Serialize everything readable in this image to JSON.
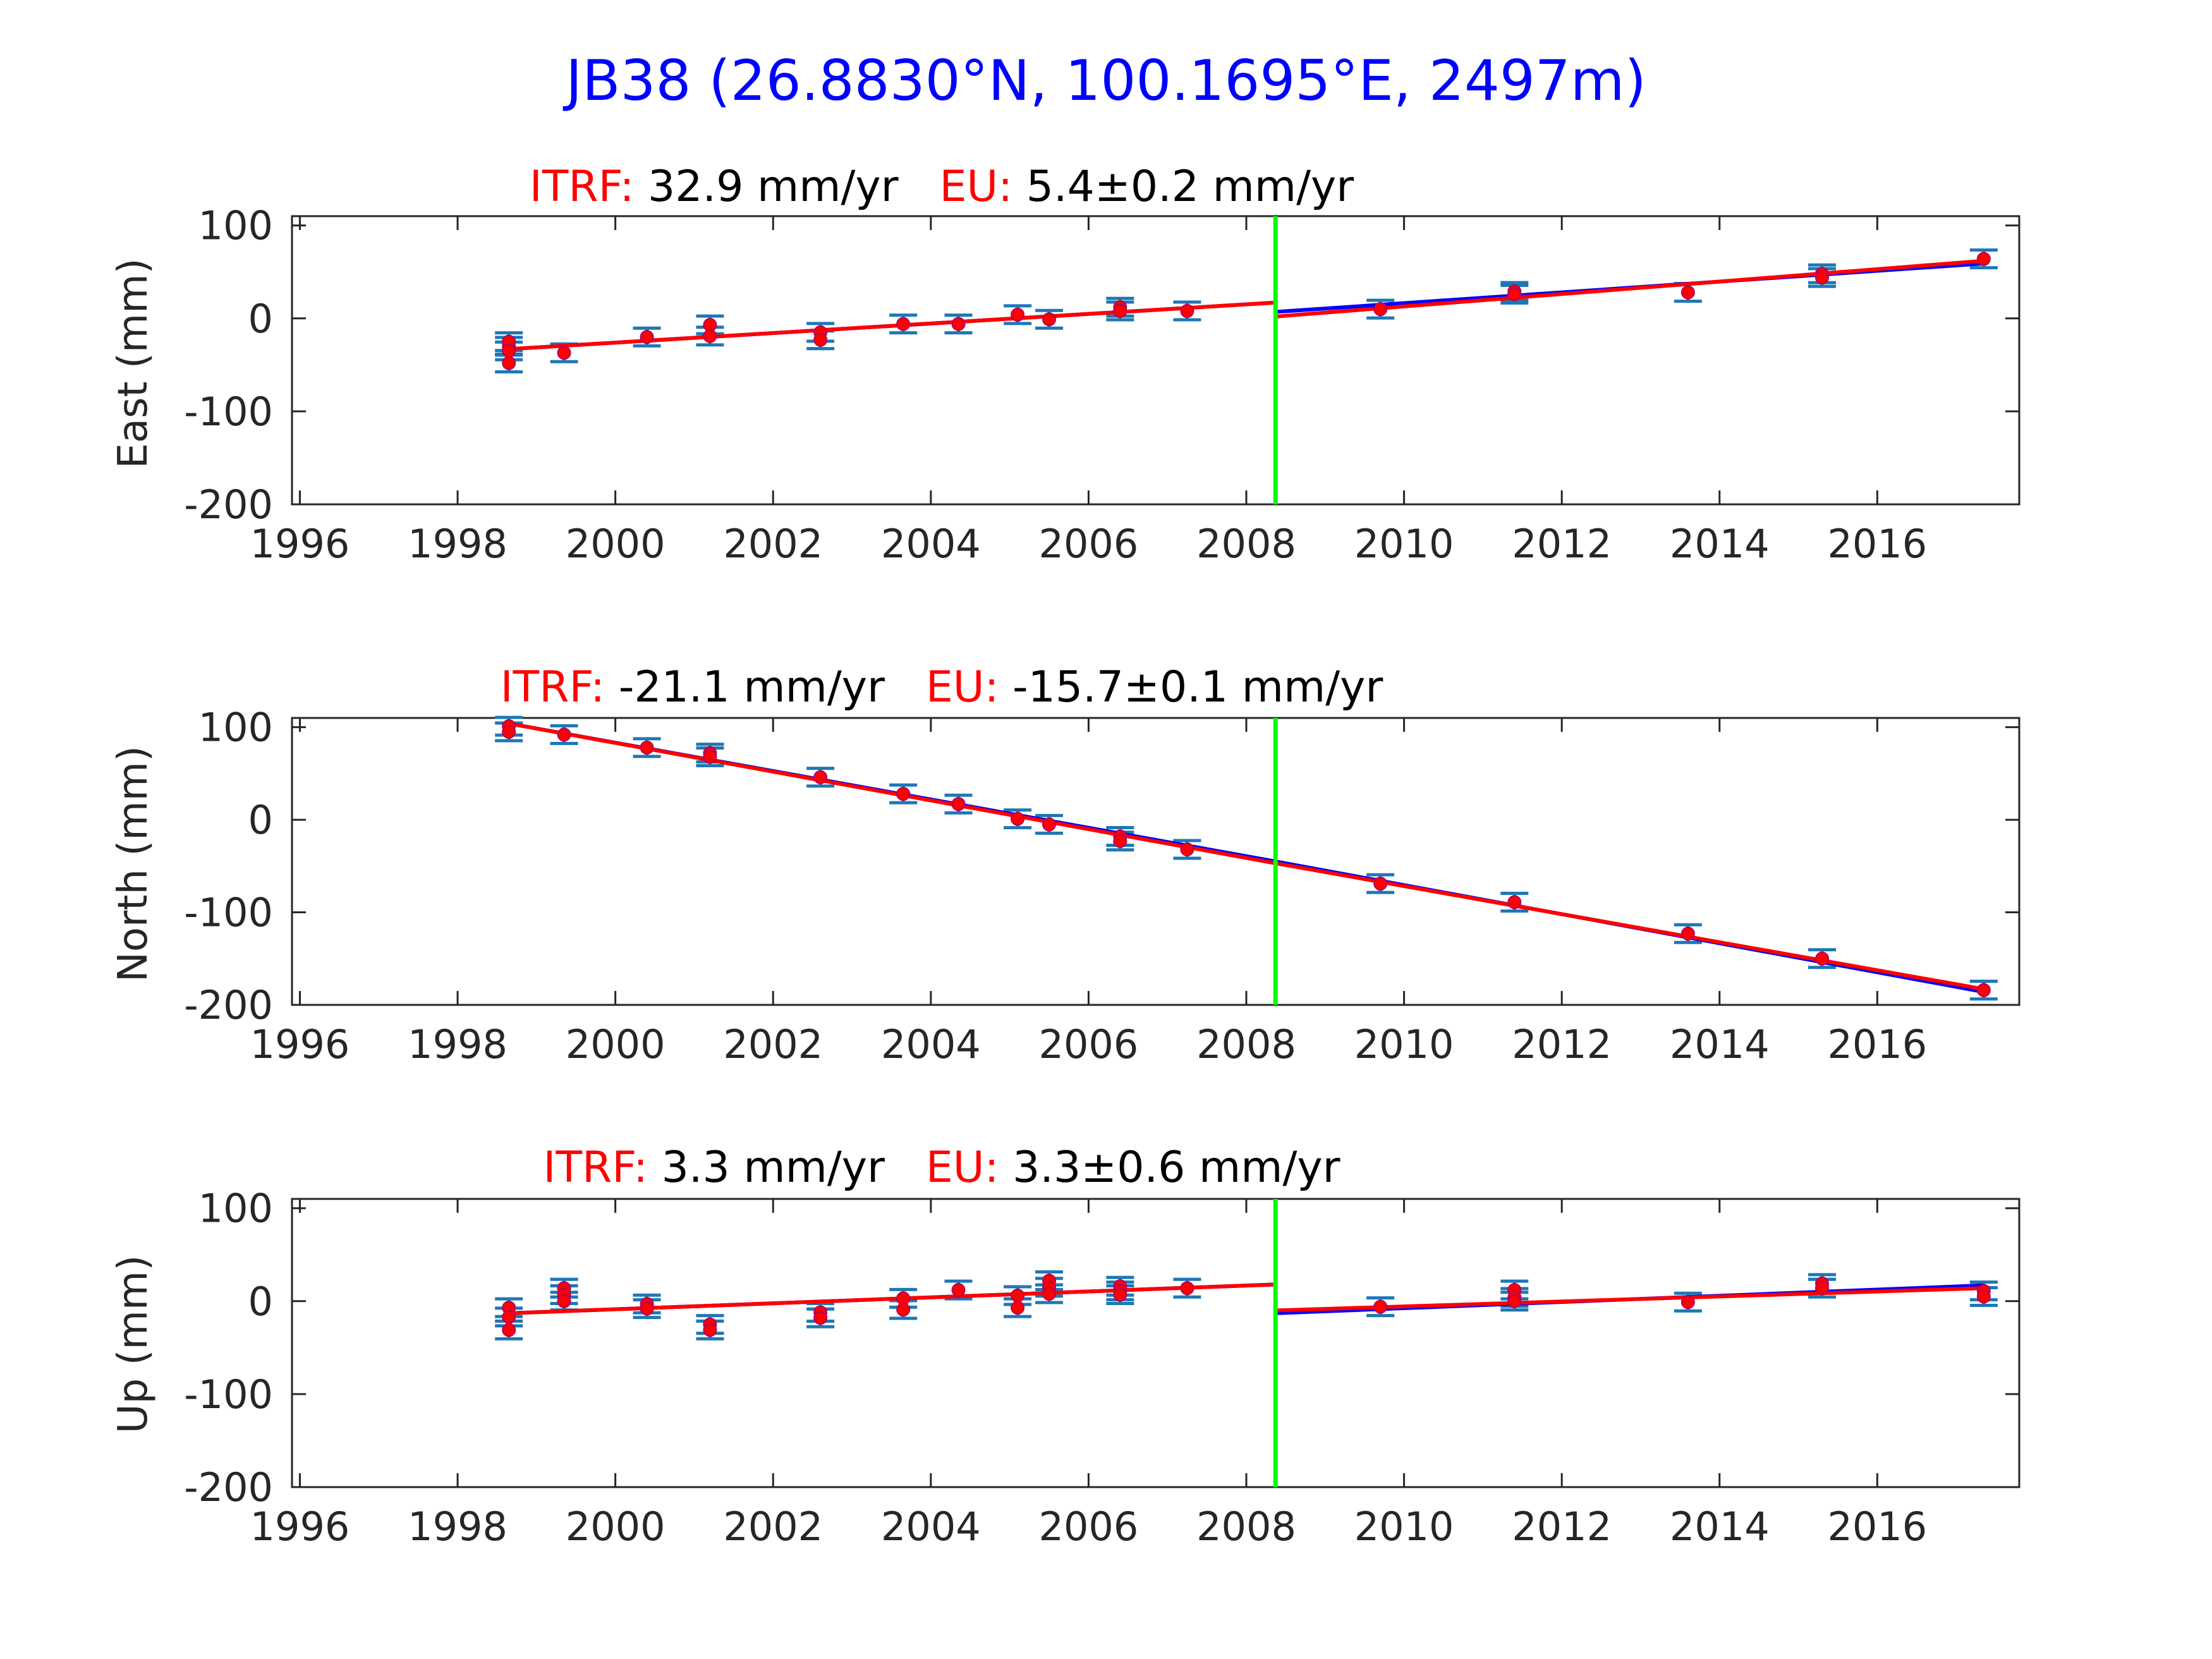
{
  "figure_title": "JB38 (26.8830°N, 100.1695°E, 2497m)",
  "colors": {
    "title": "#0000ff",
    "fit_itrf": "#0000ff",
    "fit_eu": "#ff0000",
    "points": "#ff0000",
    "errorbars": "#1f77b4",
    "offset_line": "#00ff00",
    "label_accent": "#ff0000",
    "axis_text": "#262626"
  },
  "chart_data": [
    {
      "type": "scatter",
      "ylabel": "East (mm)",
      "itrf_label": "ITRF:",
      "itrf_value": " 32.9 mm/yr",
      "eu_label": "EU:",
      "eu_value": " 5.4±0.2 mm/yr",
      "xlim": [
        1995.9,
        2017.8
      ],
      "ylim": [
        -200,
        110
      ],
      "xticks": [
        1996,
        1998,
        2000,
        2002,
        2004,
        2006,
        2008,
        2010,
        2012,
        2014,
        2016
      ],
      "xtick_labels": [
        "1996",
        "1998",
        "2000",
        "2002",
        "2004",
        "2006",
        "2008",
        "2010",
        "2012",
        "2014",
        "2016"
      ],
      "yticks": [
        -200,
        -100,
        0,
        100
      ],
      "ytick_labels": [
        "-200",
        "-100",
        "0",
        "100"
      ],
      "grid": false,
      "offset_epoch": 2008.37,
      "points": [
        {
          "x": 1998.65,
          "y": -48
        },
        {
          "x": 1998.65,
          "y": -30
        },
        {
          "x": 1998.65,
          "y": -25
        },
        {
          "x": 1998.65,
          "y": -35
        },
        {
          "x": 1999.35,
          "y": -37
        },
        {
          "x": 2000.4,
          "y": -20
        },
        {
          "x": 2001.2,
          "y": -7
        },
        {
          "x": 2001.2,
          "y": -19
        },
        {
          "x": 2002.6,
          "y": -15
        },
        {
          "x": 2002.6,
          "y": -23
        },
        {
          "x": 2003.65,
          "y": -6
        },
        {
          "x": 2004.35,
          "y": -6
        },
        {
          "x": 2005.1,
          "y": 4
        },
        {
          "x": 2005.5,
          "y": -1
        },
        {
          "x": 2006.4,
          "y": 12
        },
        {
          "x": 2006.4,
          "y": 8
        },
        {
          "x": 2007.25,
          "y": 8
        },
        {
          "x": 2009.7,
          "y": 10
        },
        {
          "x": 2011.4,
          "y": 29
        },
        {
          "x": 2011.4,
          "y": 26
        },
        {
          "x": 2013.6,
          "y": 28
        },
        {
          "x": 2015.3,
          "y": 48
        },
        {
          "x": 2015.3,
          "y": 44
        },
        {
          "x": 2017.35,
          "y": 64
        }
      ],
      "fit_itrf": [
        {
          "x": [
            1998.65,
            2008.37
          ],
          "y": [
            -33,
            17
          ]
        },
        {
          "x": [
            2008.37,
            2017.35
          ],
          "y": [
            7,
            59
          ]
        }
      ],
      "fit_eu": [
        {
          "x": [
            1998.65,
            2008.37
          ],
          "y": [
            -33,
            17
          ]
        },
        {
          "x": [
            2008.37,
            2017.35
          ],
          "y": [
            2,
            62
          ]
        }
      ]
    },
    {
      "type": "scatter",
      "ylabel": "North (mm)",
      "itrf_label": "ITRF:",
      "itrf_value": " -21.1 mm/yr",
      "eu_label": "EU:",
      "eu_value": " -15.7±0.1 mm/yr",
      "xlim": [
        1995.9,
        2017.8
      ],
      "ylim": [
        -200,
        110
      ],
      "xticks": [
        1996,
        1998,
        2000,
        2002,
        2004,
        2006,
        2008,
        2010,
        2012,
        2014,
        2016
      ],
      "xtick_labels": [
        "1996",
        "1998",
        "2000",
        "2002",
        "2004",
        "2006",
        "2008",
        "2010",
        "2012",
        "2014",
        "2016"
      ],
      "yticks": [
        -200,
        -100,
        0,
        100
      ],
      "ytick_labels": [
        "-200",
        "-100",
        "0",
        "100"
      ],
      "grid": false,
      "offset_epoch": 2008.37,
      "points": [
        {
          "x": 1998.65,
          "y": 101
        },
        {
          "x": 1998.65,
          "y": 95
        },
        {
          "x": 1999.35,
          "y": 92
        },
        {
          "x": 2000.4,
          "y": 78
        },
        {
          "x": 2001.2,
          "y": 72
        },
        {
          "x": 2001.2,
          "y": 68
        },
        {
          "x": 2002.6,
          "y": 46
        },
        {
          "x": 2003.65,
          "y": 28
        },
        {
          "x": 2004.35,
          "y": 17
        },
        {
          "x": 2005.1,
          "y": 1
        },
        {
          "x": 2005.5,
          "y": -5
        },
        {
          "x": 2006.4,
          "y": -18
        },
        {
          "x": 2006.4,
          "y": -23
        },
        {
          "x": 2007.25,
          "y": -32
        },
        {
          "x": 2009.7,
          "y": -69
        },
        {
          "x": 2011.4,
          "y": -89
        },
        {
          "x": 2013.6,
          "y": -123
        },
        {
          "x": 2015.3,
          "y": -150
        },
        {
          "x": 2017.35,
          "y": -184
        }
      ],
      "fit_itrf": [
        {
          "x": [
            1998.65,
            2008.37
          ],
          "y": [
            104,
            -45
          ]
        },
        {
          "x": [
            2008.37,
            2017.35
          ],
          "y": [
            -45,
            -186
          ]
        }
      ],
      "fit_eu": [
        {
          "x": [
            1998.65,
            2008.37
          ],
          "y": [
            104,
            -47
          ]
        },
        {
          "x": [
            2008.37,
            2017.35
          ],
          "y": [
            -47,
            -183
          ]
        }
      ]
    },
    {
      "type": "scatter",
      "ylabel": "Up (mm)",
      "itrf_label": "ITRF:",
      "itrf_value": " 3.3 mm/yr",
      "eu_label": "EU:",
      "eu_value": " 3.3±0.6 mm/yr",
      "xlim": [
        1995.9,
        2017.8
      ],
      "ylim": [
        -200,
        110
      ],
      "xticks": [
        1996,
        1998,
        2000,
        2002,
        2004,
        2006,
        2008,
        2010,
        2012,
        2014,
        2016
      ],
      "xtick_labels": [
        "1996",
        "1998",
        "2000",
        "2002",
        "2004",
        "2006",
        "2008",
        "2010",
        "2012",
        "2014",
        "2016"
      ],
      "yticks": [
        -200,
        -100,
        0,
        100
      ],
      "ytick_labels": [
        "-200",
        "-100",
        "0",
        "100"
      ],
      "grid": false,
      "offset_epoch": 2008.37,
      "points": [
        {
          "x": 1998.65,
          "y": -7
        },
        {
          "x": 1998.65,
          "y": -17
        },
        {
          "x": 1998.65,
          "y": -31
        },
        {
          "x": 1999.35,
          "y": 14
        },
        {
          "x": 1999.35,
          "y": 7
        },
        {
          "x": 1999.35,
          "y": 0
        },
        {
          "x": 2000.4,
          "y": -3
        },
        {
          "x": 2000.4,
          "y": -8
        },
        {
          "x": 2001.2,
          "y": -25
        },
        {
          "x": 2001.2,
          "y": -31
        },
        {
          "x": 2002.6,
          "y": -12
        },
        {
          "x": 2002.6,
          "y": -18
        },
        {
          "x": 2003.65,
          "y": 3
        },
        {
          "x": 2003.65,
          "y": -9
        },
        {
          "x": 2004.35,
          "y": 12
        },
        {
          "x": 2005.1,
          "y": 6
        },
        {
          "x": 2005.1,
          "y": -7
        },
        {
          "x": 2005.5,
          "y": 22
        },
        {
          "x": 2005.5,
          "y": 15
        },
        {
          "x": 2005.5,
          "y": 8
        },
        {
          "x": 2006.4,
          "y": 16
        },
        {
          "x": 2006.4,
          "y": 11
        },
        {
          "x": 2006.4,
          "y": 7
        },
        {
          "x": 2007.25,
          "y": 14
        },
        {
          "x": 2009.7,
          "y": -6
        },
        {
          "x": 2011.4,
          "y": 12
        },
        {
          "x": 2011.4,
          "y": 4
        },
        {
          "x": 2011.4,
          "y": 0
        },
        {
          "x": 2013.6,
          "y": -1
        },
        {
          "x": 2015.3,
          "y": 19
        },
        {
          "x": 2015.3,
          "y": 14
        },
        {
          "x": 2017.35,
          "y": 11
        },
        {
          "x": 2017.35,
          "y": 5
        }
      ],
      "fit_itrf": [
        {
          "x": [
            1998.65,
            2008.37
          ],
          "y": [
            -13,
            18
          ]
        },
        {
          "x": [
            2008.37,
            2017.35
          ],
          "y": [
            -13,
            17
          ]
        }
      ],
      "fit_eu": [
        {
          "x": [
            1998.65,
            2008.37
          ],
          "y": [
            -13,
            18
          ]
        },
        {
          "x": [
            2008.37,
            2017.35
          ],
          "y": [
            -10,
            14
          ]
        }
      ]
    }
  ]
}
